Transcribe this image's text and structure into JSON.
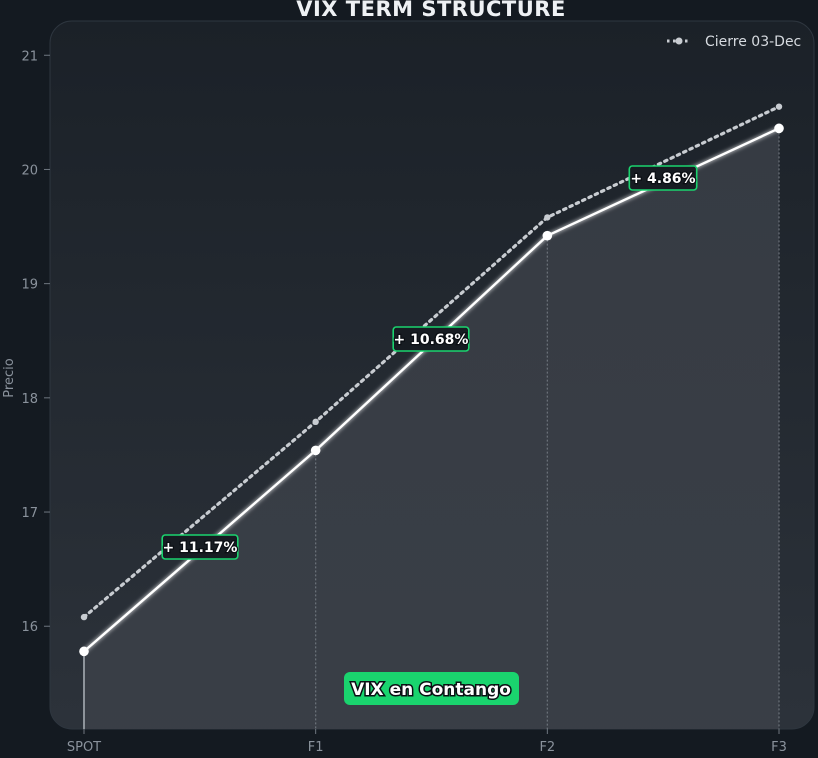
{
  "chart_data": {
    "type": "line",
    "title": "VIX TERM STRUCTURE",
    "ylabel": "Precio",
    "xlabel": "",
    "categories": [
      "SPOT",
      "F1",
      "F2",
      "F3"
    ],
    "ylim": [
      15.1,
      21.3
    ],
    "yticks": [
      16,
      17,
      18,
      19,
      20,
      21
    ],
    "grid": false,
    "legend_position": "top-right",
    "series": [
      {
        "name": "",
        "role": "current",
        "values": [
          15.78,
          17.54,
          19.42,
          20.36
        ],
        "color": "#ffffff"
      },
      {
        "name": "Cierre 03-Dec",
        "role": "previous",
        "values": [
          16.08,
          17.79,
          19.58,
          20.55
        ],
        "color": "#c8ccd1",
        "style": "dotted"
      }
    ],
    "changes": [
      "+ 11.17%",
      "+ 10.68%",
      "+ 4.86%"
    ],
    "status_label": "VIX en Contango",
    "colors": {
      "background": "#141a21",
      "panel_top": "#1b2128",
      "panel_bottom": "#2c323a",
      "accent": "#1ad46e",
      "fill": "#3a3f47"
    }
  }
}
